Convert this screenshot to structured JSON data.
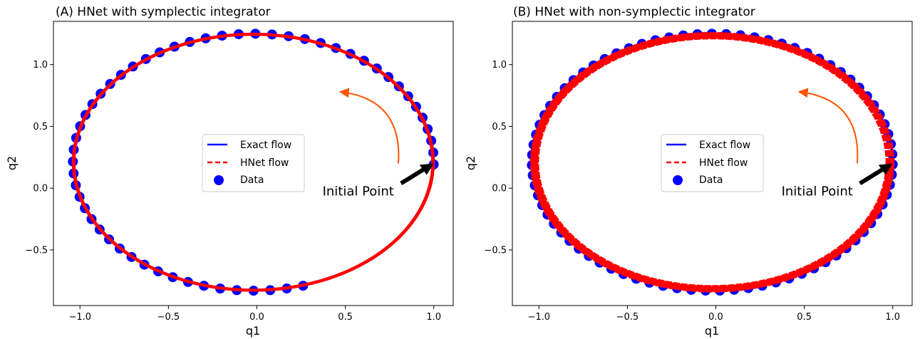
{
  "chart_data": [
    {
      "type": "scatter",
      "title": "(A) HNet with symplectic integrator",
      "xlabel": "q1",
      "ylabel": "q2",
      "xlim": [
        -1.15,
        1.11
      ],
      "ylim": [
        -0.95,
        1.35
      ],
      "xticks": [
        -1.0,
        -0.5,
        0.0,
        0.5,
        1.0
      ],
      "xtick_labels": [
        "−1.0",
        "−0.5",
        "0.0",
        "0.5",
        "1.0"
      ],
      "yticks": [
        -0.5,
        0.0,
        0.5,
        1.0
      ],
      "ytick_labels": [
        "−0.5",
        "0.0",
        "0.5",
        "1.0"
      ],
      "grid": false,
      "legend_position": "center",
      "ellipse": {
        "center": [
          -0.02,
          0.21
        ],
        "rx": 1.02,
        "ry": 1.04
      },
      "data_start_angle_deg": -1,
      "data_arc_deg": 287,
      "data_count": 55,
      "flow_start_angle_deg": -1,
      "flow_arc_deg": 360,
      "flow_widen": 0.008,
      "series": [
        {
          "name": "Exact flow",
          "style": "solid",
          "color": "#0000ff"
        },
        {
          "name": "HNet flow",
          "style": "dashed",
          "color": "#ff0000"
        },
        {
          "name": "Data",
          "style": "marker",
          "color": "#0000ff"
        }
      ],
      "annotation": {
        "text": "Initial Point",
        "xy": [
          1.0,
          0.2
        ]
      },
      "direction_arrow": {
        "from": [
          0.8,
          0.2
        ],
        "to": [
          0.47,
          0.78
        ],
        "color": "#ff5500"
      }
    },
    {
      "type": "scatter",
      "title": "(B) HNet with non-symplectic integrator",
      "xlabel": "q1",
      "ylabel": "q2",
      "xlim": [
        -1.15,
        1.11
      ],
      "ylim": [
        -0.95,
        1.35
      ],
      "xticks": [
        -1.0,
        -0.5,
        0.0,
        0.5,
        1.0
      ],
      "xtick_labels": [
        "−1.0",
        "−0.5",
        "0.0",
        "0.5",
        "1.0"
      ],
      "yticks": [
        -0.5,
        0.0,
        0.5,
        1.0
      ],
      "ytick_labels": [
        "−0.5",
        "0.0",
        "0.5",
        "1.0"
      ],
      "grid": false,
      "legend_position": "center",
      "ellipse": {
        "center": [
          -0.02,
          0.21
        ],
        "rx": 1.02,
        "ry": 1.04
      },
      "data_start_angle_deg": -1,
      "data_arc_deg": 360,
      "data_count": 80,
      "flow_start_angle_deg": -1,
      "flow_arc_deg": 360,
      "flow_widen": 0.03,
      "series": [
        {
          "name": "Exact flow",
          "style": "solid",
          "color": "#0000ff"
        },
        {
          "name": "HNet flow",
          "style": "dashed",
          "color": "#ff0000"
        },
        {
          "name": "Data",
          "style": "marker",
          "color": "#0000ff"
        }
      ],
      "annotation": {
        "text": "Initial Point",
        "xy": [
          1.0,
          0.2
        ]
      },
      "direction_arrow": {
        "from": [
          0.8,
          0.2
        ],
        "to": [
          0.47,
          0.78
        ],
        "color": "#ff5500"
      }
    }
  ]
}
